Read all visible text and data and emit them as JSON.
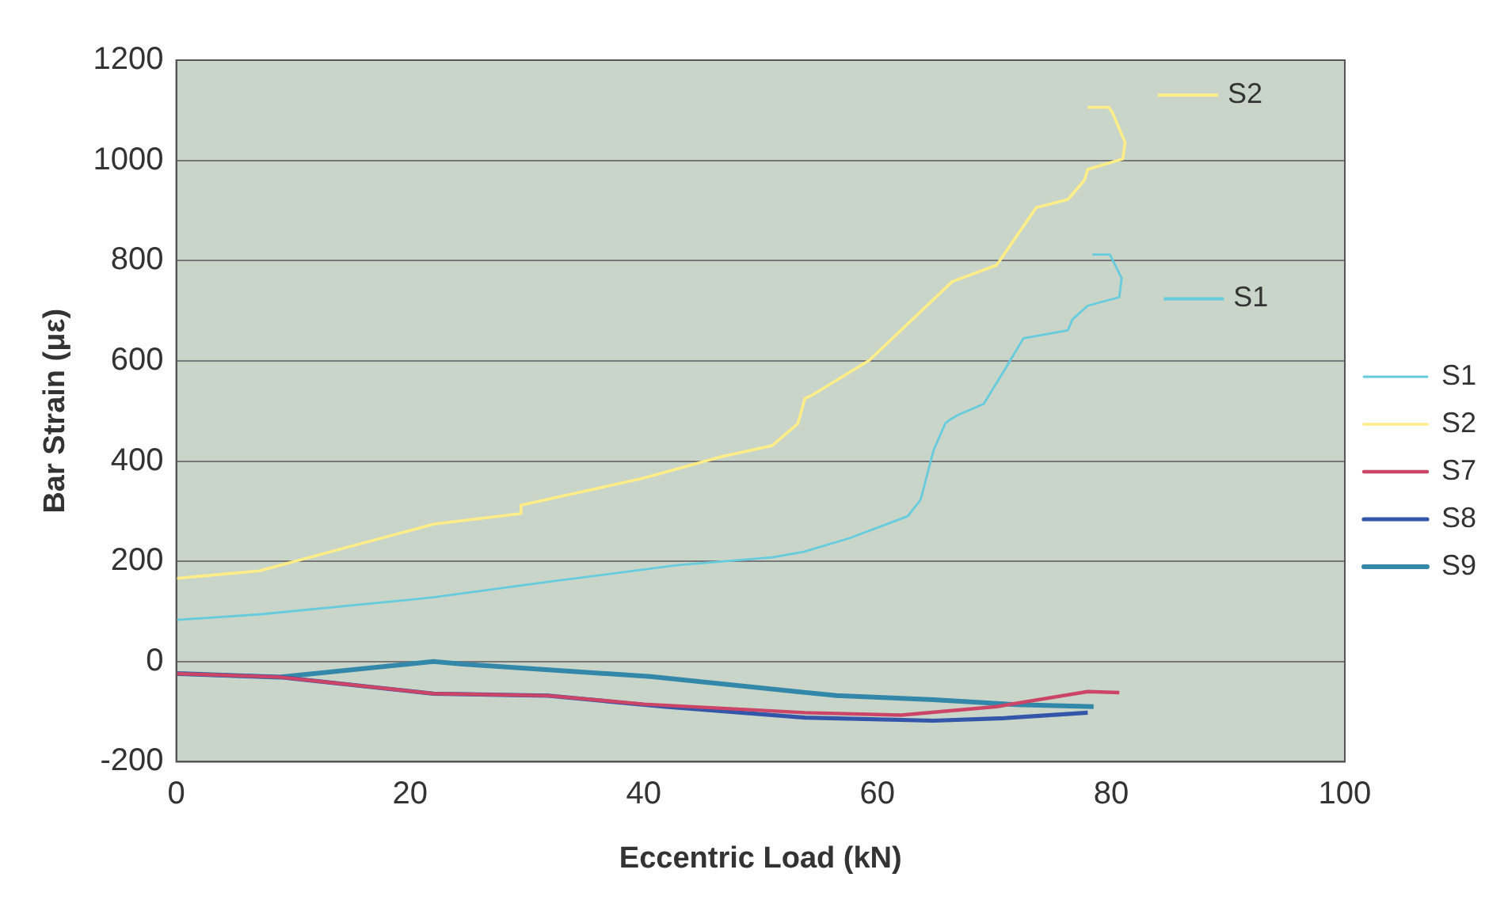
{
  "chart_data": {
    "type": "line",
    "xlabel": "Eccentric Load (kN)",
    "ylabel": "Bar Strain (με)",
    "xlim": [
      0,
      100
    ],
    "xticks": [
      0,
      20,
      40,
      60,
      80,
      100
    ],
    "ylim": [
      -200,
      1200
    ],
    "yticks": [
      -200,
      0,
      200,
      400,
      600,
      800,
      1000,
      1200
    ],
    "grid": "y",
    "legend": "right",
    "marker": "none",
    "line_style": "solid",
    "annotations": [
      "S2",
      "S1"
    ],
    "series": [
      {
        "name": "S1",
        "color": "#66ccdd",
        "x": [
          0,
          7.1,
          22,
          31.8,
          42.8,
          51,
          53.7,
          57.6,
          62.6,
          63.7,
          64.8,
          65.8,
          66.1,
          66.9,
          69.1,
          70.8,
          72.5,
          76.3,
          76.7,
          78,
          80.7,
          80.9,
          79.9,
          78.4
        ],
        "values": [
          83,
          94,
          128,
          159,
          192,
          208,
          219,
          246,
          290,
          323,
          421,
          475,
          481,
          492,
          514,
          579,
          645,
          661,
          683,
          710,
          727,
          765,
          812,
          812
        ]
      },
      {
        "name": "S2",
        "color": "#ffee88",
        "x": [
          0,
          7.1,
          22,
          29.4,
          29.5,
          40,
          46.7,
          51,
          53.2,
          53.8,
          54.3,
          59.3,
          66.4,
          67.2,
          70.2,
          73.6,
          76.3,
          77.7,
          78,
          81,
          81.2,
          80.1,
          79.8,
          78
        ],
        "values": [
          166,
          181,
          274,
          295,
          312,
          366,
          409,
          431,
          475,
          525,
          530,
          601,
          758,
          765,
          791,
          906,
          922,
          960,
          982,
          1003,
          1036,
          1096,
          1106,
          1106
        ]
      },
      {
        "name": "S7",
        "color": "#cc4466",
        "x": [
          0,
          8.8,
          22,
          31.8,
          40,
          53.8,
          62,
          70.2,
          78,
          80.7
        ],
        "values": [
          -24,
          -31,
          -64,
          -68,
          -85,
          -102,
          -107,
          -90,
          -60,
          -62
        ]
      },
      {
        "name": "S8",
        "color": "#3355aa",
        "x": [
          0,
          8.8,
          22,
          31.8,
          41.7,
          53.8,
          64.8,
          70.8,
          78
        ],
        "values": [
          -24,
          -31,
          -64,
          -68,
          -90,
          -112,
          -118,
          -113,
          -102
        ]
      },
      {
        "name": "S9",
        "color": "#3388aa",
        "x": [
          0,
          8.8,
          22,
          24.5,
          40.6,
          56.5,
          64.8,
          71.9,
          78.5
        ],
        "values": [
          -24,
          -31,
          0,
          -5,
          -30,
          -68,
          -76,
          -86,
          -90
        ]
      }
    ]
  }
}
